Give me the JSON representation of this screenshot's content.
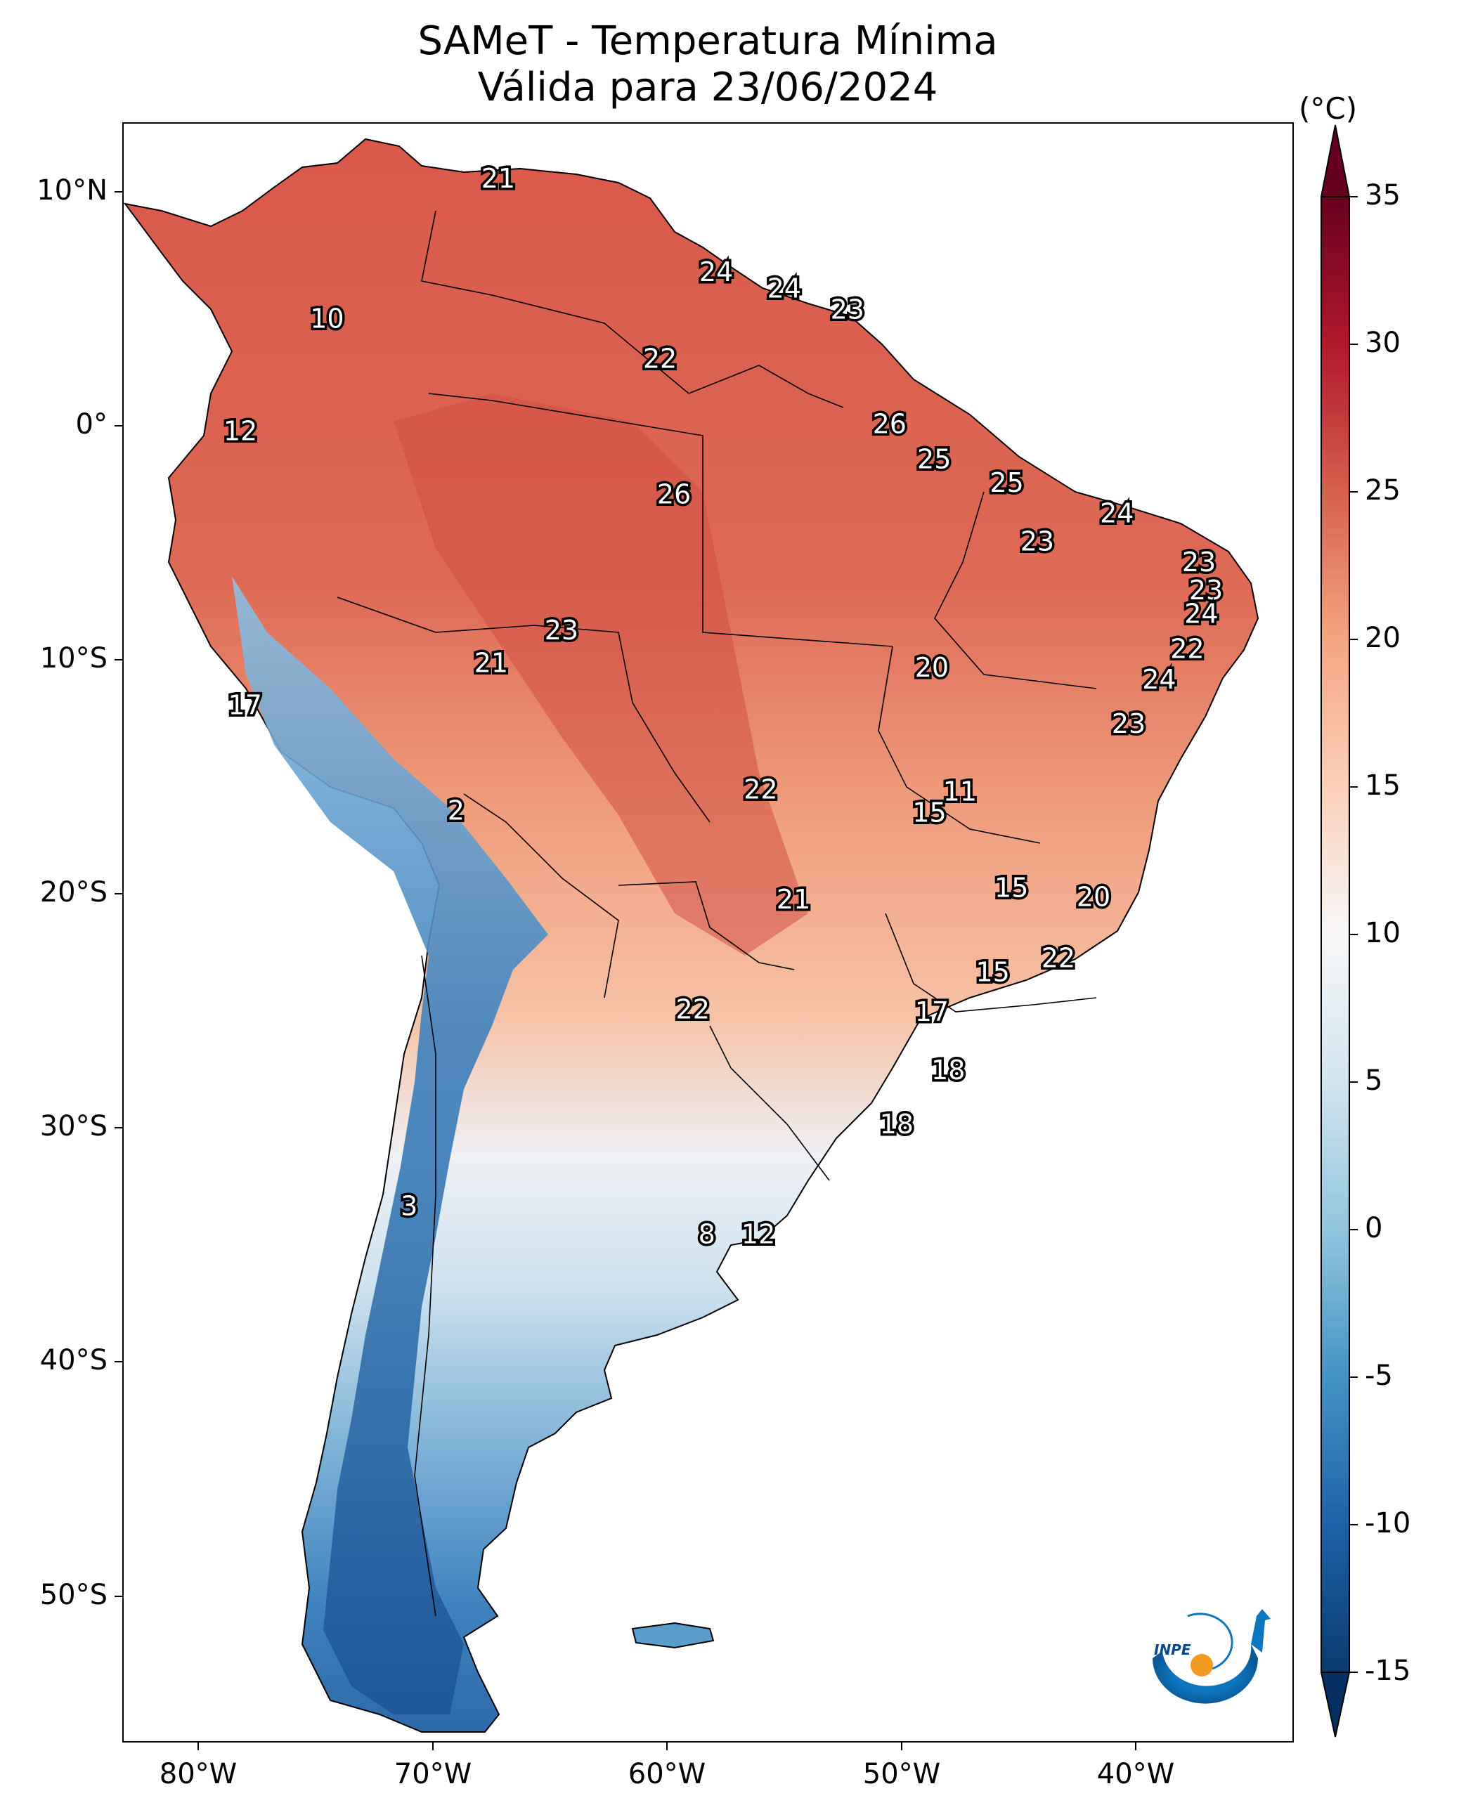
{
  "title": {
    "line1": "SAMeT - Temperatura Mínima",
    "line2": "Válida para 23/06/2024"
  },
  "colorbar": {
    "unit": "(°C)",
    "ticks": [
      "35",
      "30",
      "25",
      "20",
      "15",
      "10",
      "5",
      "0",
      "-5",
      "-10",
      "-15"
    ],
    "range": [
      -15,
      35
    ]
  },
  "axes": {
    "lat_ticks": [
      "10°N",
      "0°",
      "10°S",
      "20°S",
      "30°S",
      "40°S",
      "50°S"
    ],
    "lon_ticks": [
      "80°W",
      "70°W",
      "60°W",
      "50°W",
      "40°W"
    ]
  },
  "map_values": [
    {
      "lon": -67.2,
      "lat": 10.5,
      "text": "21"
    },
    {
      "lon": -74.5,
      "lat": 4.5,
      "text": "10"
    },
    {
      "lon": -78.2,
      "lat": -0.3,
      "text": "12"
    },
    {
      "lon": -57.9,
      "lat": 6.5,
      "text": "24"
    },
    {
      "lon": -55.0,
      "lat": 5.8,
      "text": "24"
    },
    {
      "lon": -52.3,
      "lat": 4.9,
      "text": "23"
    },
    {
      "lon": -60.3,
      "lat": 2.8,
      "text": "22"
    },
    {
      "lon": -50.5,
      "lat": 0.0,
      "text": "26"
    },
    {
      "lon": -48.6,
      "lat": -1.5,
      "text": "25"
    },
    {
      "lon": -45.5,
      "lat": -2.5,
      "text": "25"
    },
    {
      "lon": -59.7,
      "lat": -3.0,
      "text": "26"
    },
    {
      "lon": -40.8,
      "lat": -3.8,
      "text": "24"
    },
    {
      "lon": -44.2,
      "lat": -5.0,
      "text": "23"
    },
    {
      "lon": -37.3,
      "lat": -5.9,
      "text": "23"
    },
    {
      "lon": -37.0,
      "lat": -7.1,
      "text": "23"
    },
    {
      "lon": -37.2,
      "lat": -8.1,
      "text": "24"
    },
    {
      "lon": -37.8,
      "lat": -9.6,
      "text": "22"
    },
    {
      "lon": -39.0,
      "lat": -10.9,
      "text": "24"
    },
    {
      "lon": -40.3,
      "lat": -12.8,
      "text": "23"
    },
    {
      "lon": -64.5,
      "lat": -8.8,
      "text": "23"
    },
    {
      "lon": -67.5,
      "lat": -10.2,
      "text": "21"
    },
    {
      "lon": -78.0,
      "lat": -12.0,
      "text": "17"
    },
    {
      "lon": -48.7,
      "lat": -10.4,
      "text": "20"
    },
    {
      "lon": -56.0,
      "lat": -15.6,
      "text": "22"
    },
    {
      "lon": -47.5,
      "lat": -15.7,
      "text": "11"
    },
    {
      "lon": -48.8,
      "lat": -16.6,
      "text": "15"
    },
    {
      "lon": -69.0,
      "lat": -16.5,
      "text": "2"
    },
    {
      "lon": -45.3,
      "lat": -19.8,
      "text": "15"
    },
    {
      "lon": -41.8,
      "lat": -20.2,
      "text": "20"
    },
    {
      "lon": -54.6,
      "lat": -20.3,
      "text": "21"
    },
    {
      "lon": -43.3,
      "lat": -22.8,
      "text": "22"
    },
    {
      "lon": -46.1,
      "lat": -23.4,
      "text": "15"
    },
    {
      "lon": -58.9,
      "lat": -25.0,
      "text": "22"
    },
    {
      "lon": -48.7,
      "lat": -25.1,
      "text": "17"
    },
    {
      "lon": -48.0,
      "lat": -27.6,
      "text": "18"
    },
    {
      "lon": -50.2,
      "lat": -29.9,
      "text": "18"
    },
    {
      "lon": -71.0,
      "lat": -33.4,
      "text": "3"
    },
    {
      "lon": -58.3,
      "lat": -34.6,
      "text": "8"
    },
    {
      "lon": -56.1,
      "lat": -34.6,
      "text": "12"
    }
  ]
}
